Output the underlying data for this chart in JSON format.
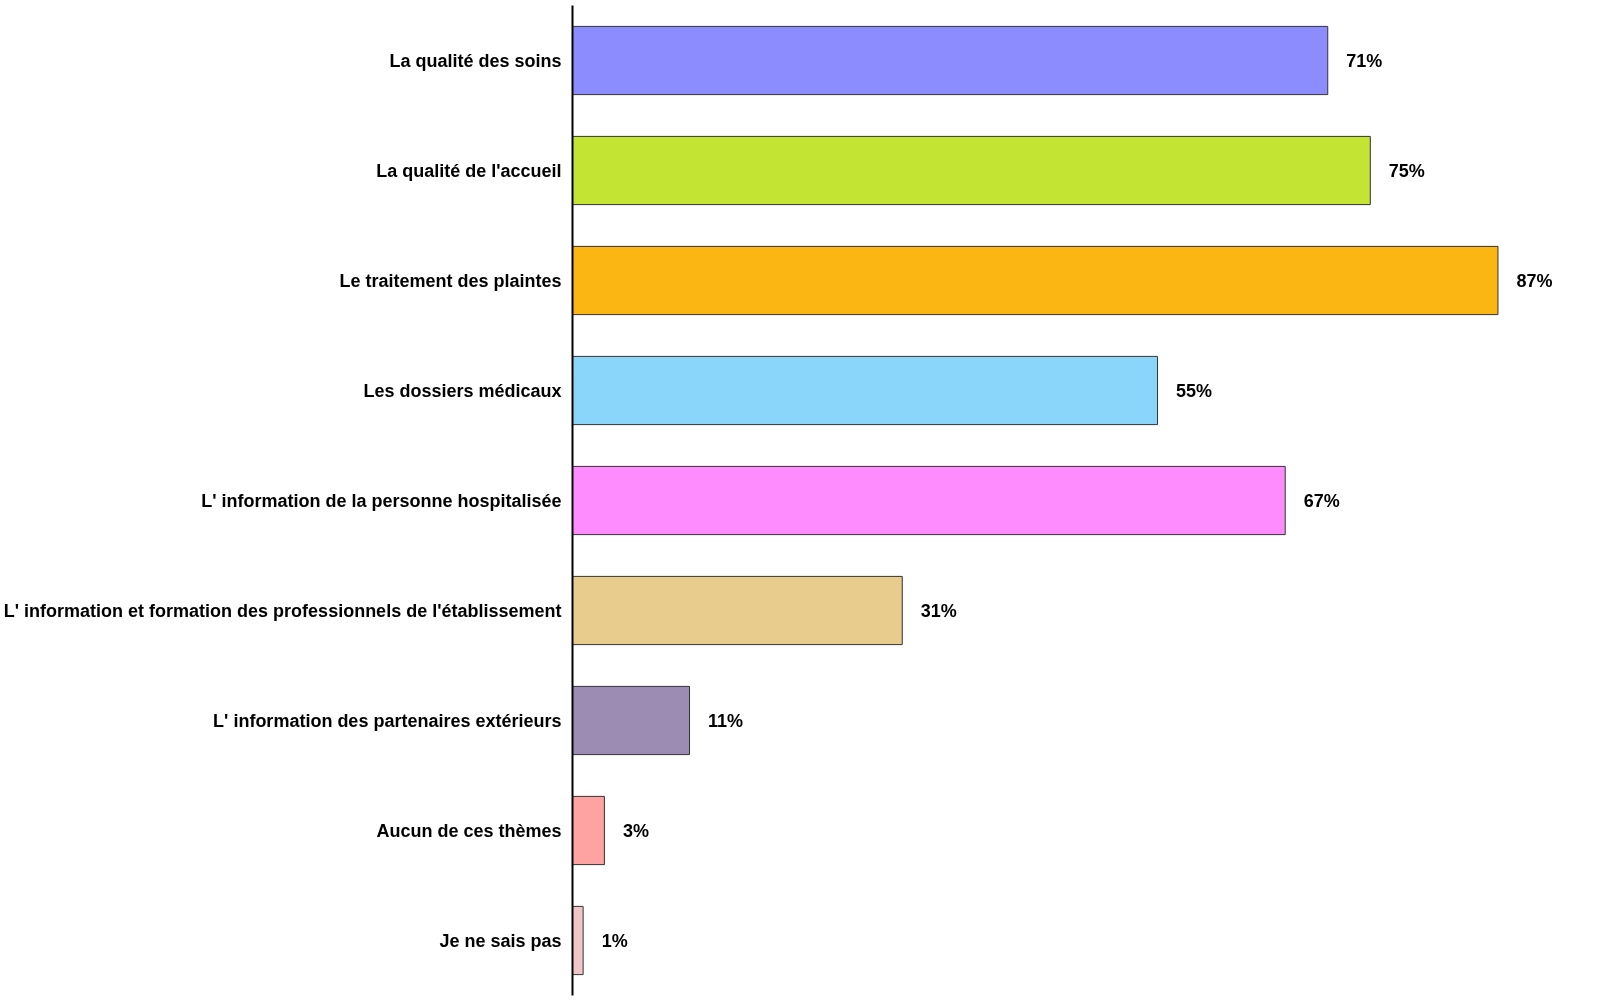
{
  "chart_data": {
    "type": "bar",
    "orientation": "horizontal",
    "grid": false,
    "value_labels": [
      "71%",
      "75%",
      "87%",
      "55%",
      "67%",
      "31%",
      "11%",
      "3%",
      "1%"
    ],
    "categories": [
      "La qualité des soins",
      "La qualité de l'accueil",
      "Le traitement des plaintes",
      "Les dossiers médicaux",
      "L' information de la personne hospitalisée",
      "L' information et formation des professionnels de l'établissement",
      "L' information des partenaires extérieurs",
      "Aucun de ces thèmes",
      "Je ne sais pas"
    ],
    "values": [
      71,
      75,
      87,
      55,
      67,
      31,
      11,
      3,
      1
    ],
    "colors": [
      "#8c8cff",
      "#c4e434",
      "#fbb614",
      "#8ad6fa",
      "#ff8cff",
      "#e8cc8e",
      "#9c8cb4",
      "#ffa2a2",
      "#f0c6c6"
    ]
  }
}
